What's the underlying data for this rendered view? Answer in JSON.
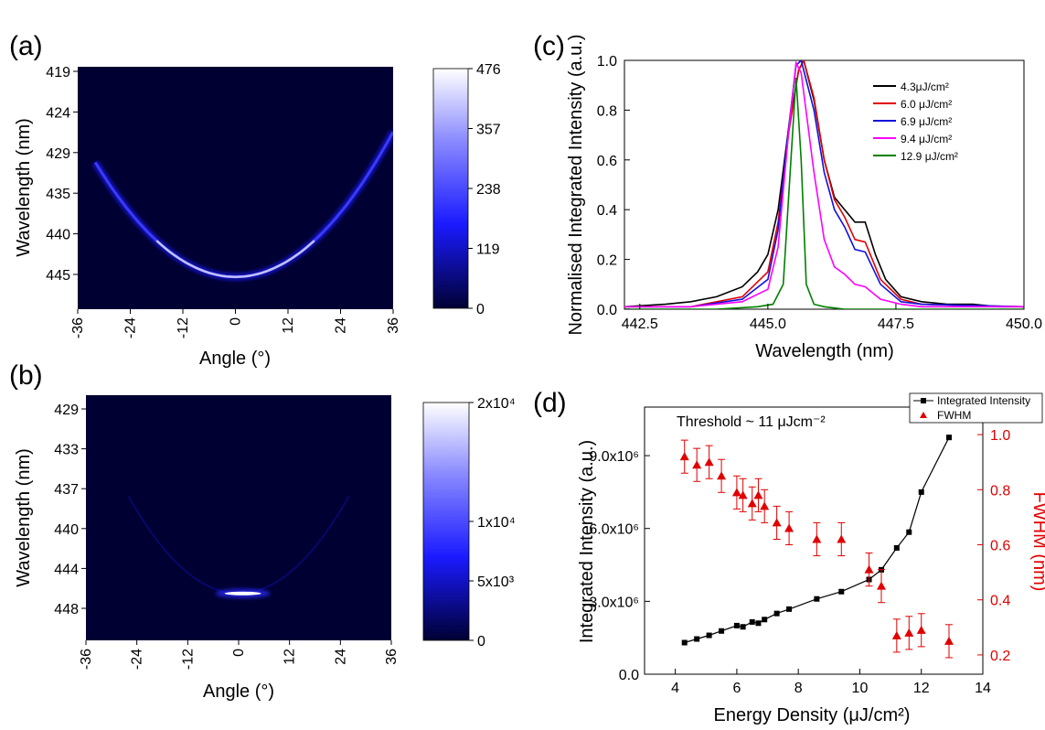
{
  "panel_labels": {
    "a": "(a)",
    "b": "(b)",
    "c": "(c)",
    "d": "(d)"
  },
  "colors": {
    "map_dark": "#000033",
    "map_mid": "#1a1aff",
    "map_light": "#ffffff",
    "fwhm": "#e00000",
    "series": [
      "#000000",
      "#e00000",
      "#1010e0",
      "#ff00ff",
      "#008000"
    ]
  },
  "chart_data": [
    {
      "panel": "a",
      "type": "heatmap",
      "xlabel": "Angle (°)",
      "ylabel": "Wavelength (nm)",
      "xticks": [
        "-36",
        "-24",
        "-12",
        "0",
        "12",
        "24",
        "36"
      ],
      "yticks": [
        "419",
        "424",
        "429",
        "435",
        "440",
        "445"
      ],
      "xlim": [
        -36,
        36
      ],
      "ylim": [
        449,
        419
      ],
      "colorbar_ticks": [
        "476",
        "357",
        "238",
        "119",
        "0"
      ],
      "colorbar_range": [
        0,
        476
      ],
      "dispersion": {
        "min_wavelength": 445,
        "angle_range": [
          -32,
          36
        ],
        "edge_wavelength": [
          430,
          428
        ]
      }
    },
    {
      "panel": "b",
      "type": "heatmap",
      "xlabel": "Angle (°)",
      "ylabel": "Wavelength (nm)",
      "xticks": [
        "-36",
        "-24",
        "-12",
        "0",
        "12",
        "24",
        "36"
      ],
      "yticks": [
        "429",
        "433",
        "437",
        "440",
        "444",
        "448"
      ],
      "xlim": [
        -36,
        36
      ],
      "ylim": [
        450,
        427
      ],
      "colorbar_ticks": [
        "2x10⁴",
        "1x10⁴",
        "5x10³",
        "0"
      ],
      "colorbar_range": [
        0,
        20000
      ],
      "lasing_spot": {
        "wavelength": 445.6,
        "angle_range": [
          -2,
          4
        ]
      }
    },
    {
      "panel": "c",
      "type": "line",
      "xlabel": "Wavelength (nm)",
      "ylabel": "Normalised Integrated Intensity (a.u.)",
      "xticks": [
        "442.5",
        "445.0",
        "447.5",
        "450.0"
      ],
      "yticks": [
        "0.0",
        "0.2",
        "0.4",
        "0.6",
        "0.8",
        "1.0"
      ],
      "xlim": [
        442.2,
        450
      ],
      "ylim": [
        0,
        1
      ],
      "legend_position": "top-right",
      "series": [
        {
          "name": "4.3μJ/cm²",
          "color": "#000000",
          "x": [
            442.2,
            443.0,
            443.5,
            444.0,
            444.5,
            444.8,
            445.0,
            445.2,
            445.4,
            445.6,
            445.7,
            445.9,
            446.1,
            446.3,
            446.5,
            446.7,
            446.9,
            447.1,
            447.3,
            447.6,
            448.0,
            448.5,
            449.0,
            449.5,
            450.0
          ],
          "y": [
            0.01,
            0.02,
            0.03,
            0.05,
            0.09,
            0.15,
            0.22,
            0.4,
            0.72,
            0.96,
            1.0,
            0.84,
            0.6,
            0.45,
            0.4,
            0.35,
            0.35,
            0.22,
            0.12,
            0.05,
            0.03,
            0.02,
            0.02,
            0.01,
            0.01
          ]
        },
        {
          "name": "6.0 μJ/cm²",
          "color": "#e00000",
          "x": [
            442.2,
            443.5,
            444.5,
            445.0,
            445.2,
            445.4,
            445.6,
            445.7,
            445.9,
            446.1,
            446.3,
            446.5,
            446.7,
            446.9,
            447.2,
            447.6,
            448.0,
            450.0
          ],
          "y": [
            0.01,
            0.01,
            0.05,
            0.15,
            0.35,
            0.7,
            0.96,
            1.0,
            0.85,
            0.6,
            0.44,
            0.37,
            0.28,
            0.27,
            0.12,
            0.04,
            0.02,
            0.01
          ]
        },
        {
          "name": "6.9 μJ/cm²",
          "color": "#1010e0",
          "x": [
            442.2,
            443.5,
            444.5,
            445.0,
            445.2,
            445.4,
            445.55,
            445.65,
            445.9,
            446.1,
            446.3,
            446.5,
            446.7,
            446.9,
            447.2,
            447.6,
            448.0,
            450.0
          ],
          "y": [
            0.01,
            0.01,
            0.04,
            0.12,
            0.32,
            0.72,
            0.98,
            1.0,
            0.8,
            0.55,
            0.4,
            0.33,
            0.24,
            0.23,
            0.1,
            0.03,
            0.02,
            0.01
          ]
        },
        {
          "name": "9.4 μJ/cm²",
          "color": "#ff00ff",
          "x": [
            442.2,
            443.5,
            444.5,
            445.0,
            445.2,
            445.4,
            445.55,
            445.65,
            445.9,
            446.1,
            446.3,
            446.5,
            446.7,
            446.9,
            447.2,
            447.6,
            448.0,
            450.0
          ],
          "y": [
            0.01,
            0.01,
            0.03,
            0.08,
            0.25,
            0.7,
            0.99,
            0.95,
            0.55,
            0.28,
            0.17,
            0.14,
            0.1,
            0.09,
            0.04,
            0.02,
            0.01,
            0.01
          ]
        },
        {
          "name": "12.9 μJ/cm²",
          "color": "#008000",
          "x": [
            442.2,
            444.0,
            444.8,
            445.1,
            445.3,
            445.45,
            445.55,
            445.65,
            445.75,
            445.9,
            446.1,
            446.5,
            447.0,
            450.0
          ],
          "y": [
            0.0,
            0.0,
            0.01,
            0.02,
            0.1,
            0.6,
            0.93,
            0.6,
            0.1,
            0.02,
            0.01,
            0.0,
            0.0,
            0.0
          ]
        }
      ]
    },
    {
      "panel": "d",
      "type": "scatter",
      "xlabel": "Energy Density (μJ/cm²)",
      "ylabel": "Integrated Intensity (a.u.)",
      "ylabel_right": "FWHM (nm)",
      "annotation": "Threshold ~ 11 μJcm⁻²",
      "xticks": [
        "4",
        "6",
        "8",
        "10",
        "12",
        "14"
      ],
      "yticks": [
        "0.0",
        "3.0x10⁶",
        "6.0x10⁶",
        "9.0x10⁶"
      ],
      "yticks_right": [
        "0.2",
        "0.4",
        "0.6",
        "0.8",
        "1.0"
      ],
      "xlim": [
        3,
        14
      ],
      "ylim": [
        0,
        11000000
      ],
      "ylim_right": [
        0.13,
        1.1
      ],
      "legend_position": "top-right",
      "series": [
        {
          "name": "Integrated Intensity",
          "color": "#000000",
          "x": [
            4.3,
            4.7,
            5.1,
            5.5,
            6.0,
            6.2,
            6.5,
            6.7,
            6.9,
            7.3,
            7.7,
            8.6,
            9.4,
            10.3,
            10.7,
            11.2,
            11.6,
            12.0,
            12.9
          ],
          "y": [
            1300000,
            1450000,
            1600000,
            1780000,
            2000000,
            1950000,
            2150000,
            2100000,
            2250000,
            2500000,
            2680000,
            3100000,
            3400000,
            3900000,
            4300000,
            5200000,
            5850000,
            7500000,
            9750000
          ]
        },
        {
          "name": "FWHM",
          "color": "#e00000",
          "x": [
            4.3,
            4.7,
            5.1,
            5.5,
            6.0,
            6.2,
            6.5,
            6.7,
            6.9,
            7.3,
            7.7,
            8.6,
            9.4,
            10.3,
            10.7,
            11.2,
            11.6,
            12.0,
            12.9
          ],
          "y": [
            0.92,
            0.89,
            0.9,
            0.85,
            0.79,
            0.78,
            0.75,
            0.78,
            0.74,
            0.68,
            0.66,
            0.62,
            0.62,
            0.51,
            0.45,
            0.27,
            0.28,
            0.29,
            0.25
          ],
          "err": [
            0.06,
            0.06,
            0.06,
            0.06,
            0.06,
            0.06,
            0.06,
            0.06,
            0.06,
            0.06,
            0.06,
            0.06,
            0.06,
            0.06,
            0.06,
            0.06,
            0.06,
            0.06,
            0.06
          ]
        }
      ]
    }
  ]
}
